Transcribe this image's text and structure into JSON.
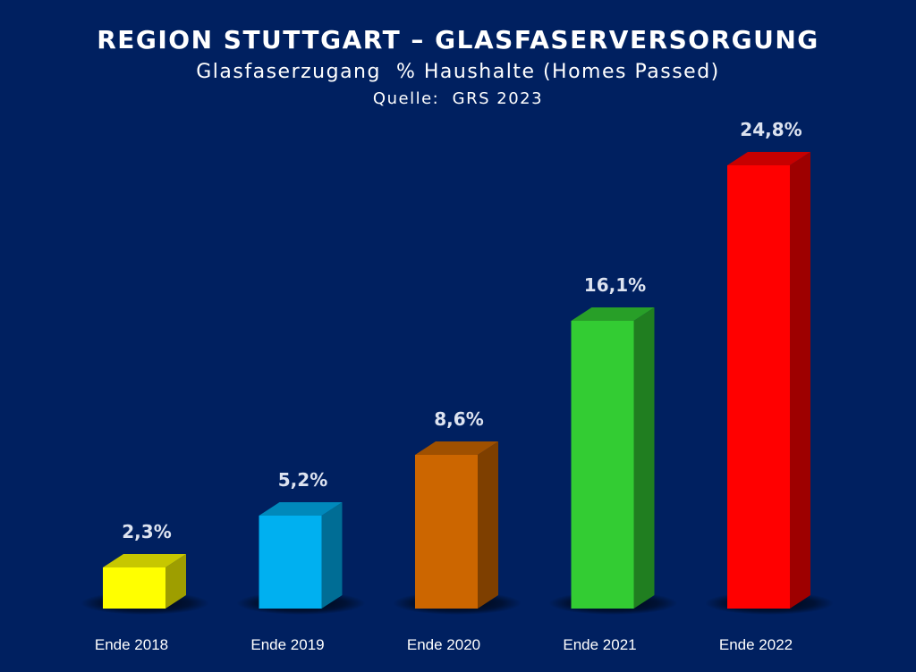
{
  "header": {
    "title": "REGION STUTTGART – GLASFASERVERSORGUNG",
    "subtitle": "Glasfaserzugang  % Haushalte (Homes Passed)",
    "source": "Quelle:  GRS 2023"
  },
  "colors": {
    "background": "#002060",
    "bars": [
      "#ffff00",
      "#00b0f0",
      "#cc6600",
      "#33cc33",
      "#ff0000"
    ]
  },
  "chart_data": {
    "type": "bar",
    "title": "REGION STUTTGART – GLASFASERVERSORGUNG",
    "subtitle": "Glasfaserzugang  % Haushalte (Homes Passed)",
    "source": "Quelle:  GRS 2023",
    "categories": [
      "Ende 2018",
      "Ende 2019",
      "Ende 2020",
      "Ende 2021",
      "Ende 2022"
    ],
    "values": [
      2.3,
      5.2,
      8.6,
      16.1,
      24.8
    ],
    "data_labels": [
      "2,3%",
      "5,2%",
      "8,6%",
      "16,1%",
      "24,8%"
    ],
    "unit": "%",
    "ylim": [
      0,
      24.8
    ],
    "grid": false,
    "legend": "none",
    "style": "3d-bars"
  }
}
